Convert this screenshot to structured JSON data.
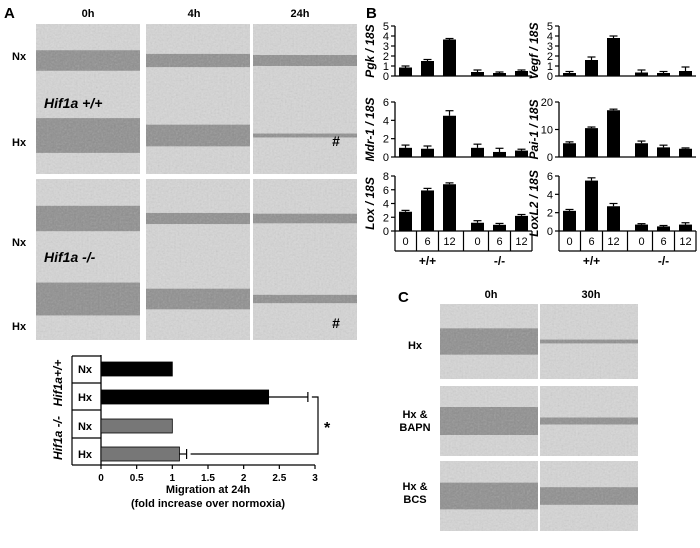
{
  "panelA": {
    "letter": "A",
    "times": [
      "0h",
      "4h",
      "24h"
    ],
    "groups": [
      {
        "genotype": "Hif1a +/+",
        "rows": [
          {
            "cond": "Nx",
            "hash": [
              "",
              "",
              ""
            ]
          },
          {
            "cond": "Hx",
            "hash": [
              "",
              "",
              "#"
            ]
          }
        ]
      },
      {
        "genotype": "Hif1a -/-",
        "rows": [
          {
            "cond": "Nx",
            "hash": [
              "",
              "",
              ""
            ]
          },
          {
            "cond": "Hx",
            "hash": [
              "",
              "",
              "#"
            ]
          }
        ]
      }
    ],
    "asterisk": "*"
  },
  "panelB": {
    "letter": "B",
    "bottom_labels": {
      "times": [
        "0",
        "6",
        "12",
        "0",
        "6",
        "12"
      ],
      "genotypes": [
        "+/+",
        "-/-"
      ]
    }
  },
  "panelC": {
    "letter": "C",
    "times": [
      "0h",
      "30h"
    ],
    "rows": [
      "Hx",
      "Hx & BAPN",
      "Hx & BCS"
    ]
  },
  "chart_data": [
    {
      "type": "bar",
      "id": "migration",
      "orientation": "horizontal",
      "group_labels": [
        "Hif1a+/+",
        "Hif1a -/-"
      ],
      "categories": [
        "Nx",
        "Hx",
        "Nx",
        "Hx"
      ],
      "values": [
        1.0,
        2.35,
        1.0,
        1.1
      ],
      "errors": [
        0,
        0.55,
        0,
        0.1
      ],
      "colors": [
        "#000000",
        "#000000",
        "#777777",
        "#777777"
      ],
      "xlabel": "Migration at 24h",
      "xlabel2": "(fold increase over normoxia)",
      "xticks": [
        "0",
        "0.5",
        "1",
        "1.5",
        "2",
        "2.5",
        "3"
      ],
      "xlim": [
        0,
        3
      ]
    },
    {
      "type": "bar",
      "id": "pgk",
      "ylabel": "Pgk / 18S",
      "yticks": [
        0,
        1,
        2,
        3,
        4,
        5
      ],
      "ylim": [
        0,
        5
      ],
      "values": [
        0.85,
        1.5,
        3.65,
        0.4,
        0.3,
        0.5
      ],
      "errors": [
        0.15,
        0.15,
        0.1,
        0.2,
        0.1,
        0.1
      ]
    },
    {
      "type": "bar",
      "id": "vegf",
      "ylabel": "Vegf / 18S",
      "yticks": [
        0,
        1,
        2,
        3,
        4,
        5
      ],
      "ylim": [
        0,
        5
      ],
      "values": [
        0.3,
        1.6,
        3.8,
        0.35,
        0.3,
        0.5
      ],
      "errors": [
        0.15,
        0.3,
        0.2,
        0.25,
        0.15,
        0.4
      ]
    },
    {
      "type": "bar",
      "id": "mdr1",
      "ylabel": "Mdr-1 / 18S",
      "yticks": [
        0,
        2,
        4,
        6
      ],
      "ylim": [
        0,
        6
      ],
      "values": [
        1.0,
        0.9,
        4.5,
        1.0,
        0.55,
        0.7
      ],
      "errors": [
        0.3,
        0.3,
        0.55,
        0.4,
        0.4,
        0.15
      ]
    },
    {
      "type": "bar",
      "id": "pai1",
      "ylabel": "Pai-1 / 18S",
      "yticks": [
        0,
        10,
        20
      ],
      "ylim": [
        0,
        20
      ],
      "values": [
        5.0,
        10.5,
        17.0,
        5.0,
        3.5,
        3.0
      ],
      "errors": [
        0.5,
        0.4,
        0.4,
        0.8,
        0.8,
        0.3
      ]
    },
    {
      "type": "bar",
      "id": "lox",
      "ylabel": "Lox / 18S",
      "yticks": [
        0,
        2,
        4,
        6,
        8
      ],
      "ylim": [
        0,
        8
      ],
      "values": [
        2.8,
        5.9,
        6.8,
        1.2,
        0.9,
        2.2
      ],
      "errors": [
        0.2,
        0.3,
        0.2,
        0.3,
        0.2,
        0.2
      ]
    },
    {
      "type": "bar",
      "id": "loxl2",
      "ylabel": "LoxL2 / 18S",
      "yticks": [
        0,
        2,
        4,
        6
      ],
      "ylim": [
        0,
        6
      ],
      "values": [
        2.2,
        5.5,
        2.7,
        0.7,
        0.5,
        0.7
      ],
      "errors": [
        0.15,
        0.3,
        0.3,
        0.1,
        0.1,
        0.2
      ]
    }
  ]
}
